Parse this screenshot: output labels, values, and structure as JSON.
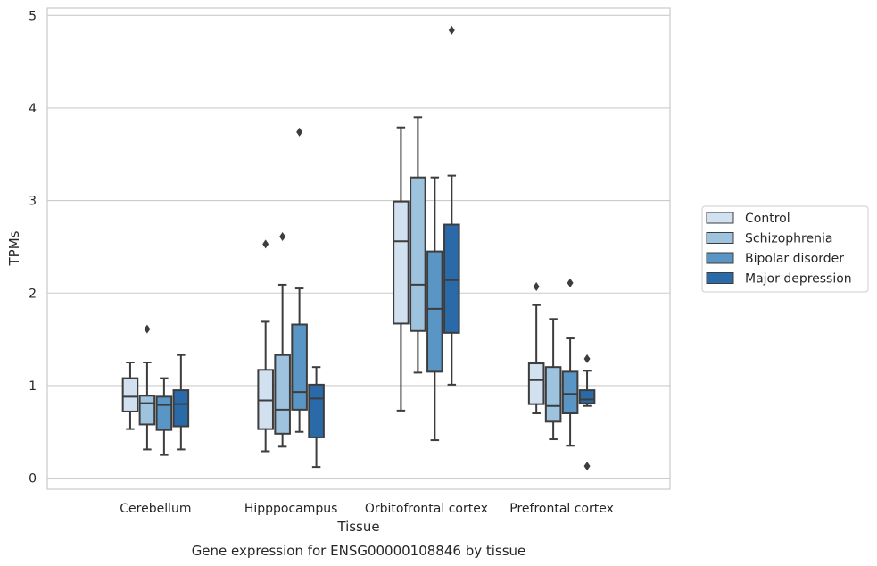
{
  "caption": "Gene expression for ENSG00000108846 by tissue",
  "chart_data": {
    "type": "box",
    "xlabel": "Tissue",
    "ylabel": "TPMs",
    "ylim": [
      -0.12,
      5.08
    ],
    "yticks": [
      0,
      1,
      2,
      3,
      4,
      5
    ],
    "grid": "horizontal",
    "legend_position": "right",
    "categories": [
      "Cerebellum",
      "Hipppocampus",
      "Orbitofrontal cortex",
      "Prefrontal cortex"
    ],
    "series": [
      {
        "name": "Control",
        "color": "#d1e1f0",
        "boxes": [
          {
            "whisker_low": 0.53,
            "q1": 0.72,
            "median": 0.88,
            "q3": 1.08,
            "whisker_high": 1.25,
            "outliers": []
          },
          {
            "whisker_low": 0.29,
            "q1": 0.53,
            "median": 0.84,
            "q3": 1.17,
            "whisker_high": 1.69,
            "outliers": [
              2.53
            ]
          },
          {
            "whisker_low": 0.73,
            "q1": 1.67,
            "median": 2.56,
            "q3": 2.99,
            "whisker_high": 3.79,
            "outliers": []
          },
          {
            "whisker_low": 0.7,
            "q1": 0.8,
            "median": 1.06,
            "q3": 1.24,
            "whisker_high": 1.87,
            "outliers": [
              2.07
            ]
          }
        ]
      },
      {
        "name": "Schizophrenia",
        "color": "#9dc3df",
        "boxes": [
          {
            "whisker_low": 0.31,
            "q1": 0.58,
            "median": 0.81,
            "q3": 0.89,
            "whisker_high": 1.25,
            "outliers": [
              1.61
            ]
          },
          {
            "whisker_low": 0.34,
            "q1": 0.48,
            "median": 0.74,
            "q3": 1.33,
            "whisker_high": 2.09,
            "outliers": [
              2.61
            ]
          },
          {
            "whisker_low": 1.14,
            "q1": 1.59,
            "median": 2.09,
            "q3": 3.25,
            "whisker_high": 3.9,
            "outliers": []
          },
          {
            "whisker_low": 0.42,
            "q1": 0.61,
            "median": 0.78,
            "q3": 1.2,
            "whisker_high": 1.72,
            "outliers": []
          }
        ]
      },
      {
        "name": "Bipolar disorder",
        "color": "#5a96c5",
        "boxes": [
          {
            "whisker_low": 0.25,
            "q1": 0.52,
            "median": 0.79,
            "q3": 0.88,
            "whisker_high": 1.08,
            "outliers": []
          },
          {
            "whisker_low": 0.5,
            "q1": 0.74,
            "median": 0.93,
            "q3": 1.66,
            "whisker_high": 2.05,
            "outliers": [
              3.74
            ]
          },
          {
            "whisker_low": 0.41,
            "q1": 1.15,
            "median": 1.83,
            "q3": 2.45,
            "whisker_high": 3.25,
            "outliers": []
          },
          {
            "whisker_low": 0.35,
            "q1": 0.7,
            "median": 0.91,
            "q3": 1.15,
            "whisker_high": 1.51,
            "outliers": [
              2.11
            ]
          }
        ]
      },
      {
        "name": "Major depression",
        "color": "#2a6aa8",
        "boxes": [
          {
            "whisker_low": 0.31,
            "q1": 0.56,
            "median": 0.8,
            "q3": 0.95,
            "whisker_high": 1.33,
            "outliers": []
          },
          {
            "whisker_low": 0.12,
            "q1": 0.44,
            "median": 0.86,
            "q3": 1.01,
            "whisker_high": 1.2,
            "outliers": []
          },
          {
            "whisker_low": 1.01,
            "q1": 1.57,
            "median": 2.14,
            "q3": 2.74,
            "whisker_high": 3.27,
            "outliers": [
              4.84
            ]
          },
          {
            "whisker_low": 0.78,
            "q1": 0.81,
            "median": 0.85,
            "q3": 0.95,
            "whisker_high": 1.16,
            "outliers": [
              1.29,
              0.13
            ]
          }
        ]
      }
    ]
  }
}
